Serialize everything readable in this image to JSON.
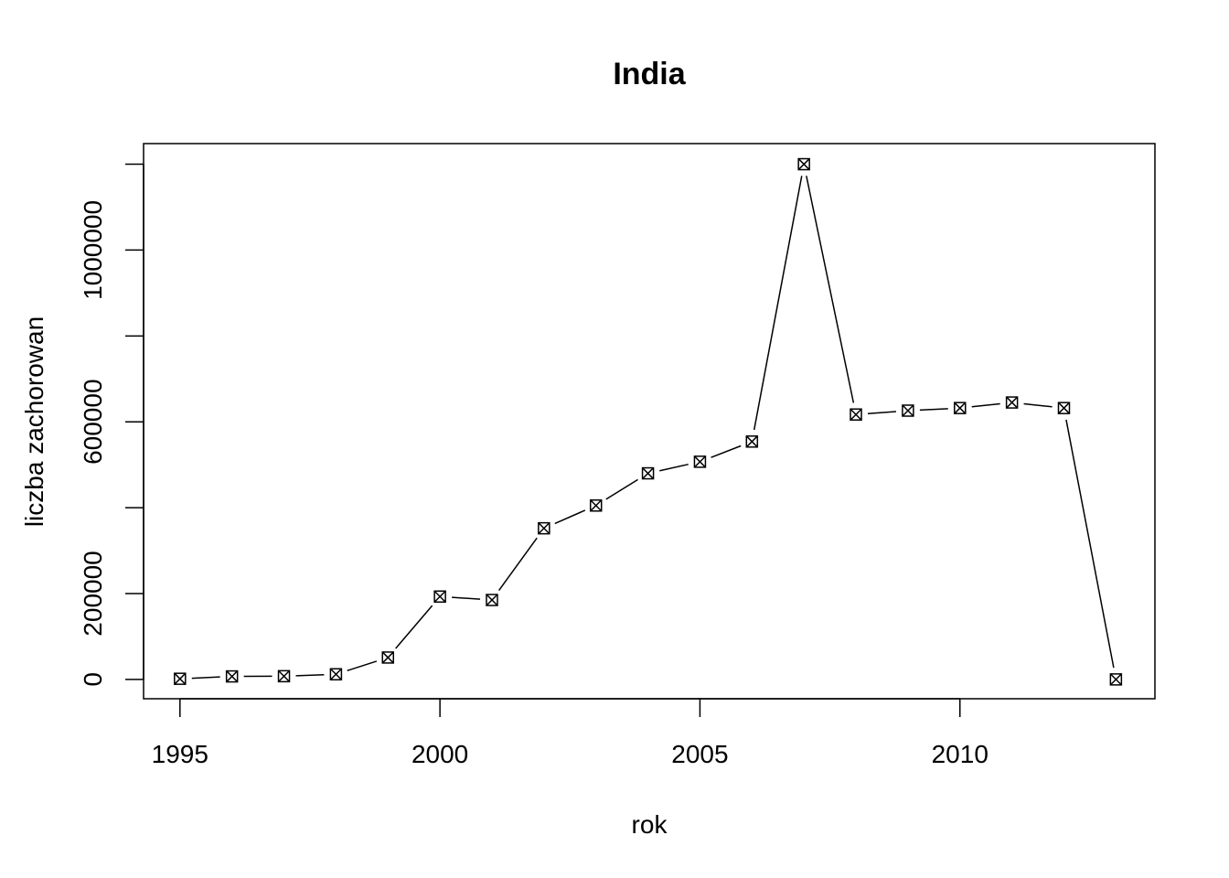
{
  "chart_data": {
    "type": "line",
    "title": "India",
    "xlabel": "rok",
    "ylabel": "liczba zachorowan",
    "x": [
      1995,
      1996,
      1997,
      1998,
      1999,
      2000,
      2001,
      2002,
      2003,
      2004,
      2005,
      2006,
      2007,
      2008,
      2009,
      2010,
      2011,
      2012,
      2013
    ],
    "series": [
      {
        "values": [
          1500,
          7000,
          7500,
          12000,
          51000,
          193000,
          185000,
          352000,
          405000,
          480000,
          507000,
          554000,
          1200000,
          617000,
          626000,
          632000,
          645000,
          632000,
          0
        ]
      }
    ],
    "xlim": [
      1994.3,
      2013.75
    ],
    "ylim": [
      -45000,
      1248000
    ],
    "xticks": [
      "1995",
      "2000",
      "2005",
      "2010"
    ],
    "yticks": [
      "0",
      "200000",
      "600000",
      "1000000"
    ],
    "yticks_unlabeled": [
      400000,
      800000,
      1200000
    ],
    "marker": "crossed-square",
    "grid": false,
    "legend": "none"
  }
}
